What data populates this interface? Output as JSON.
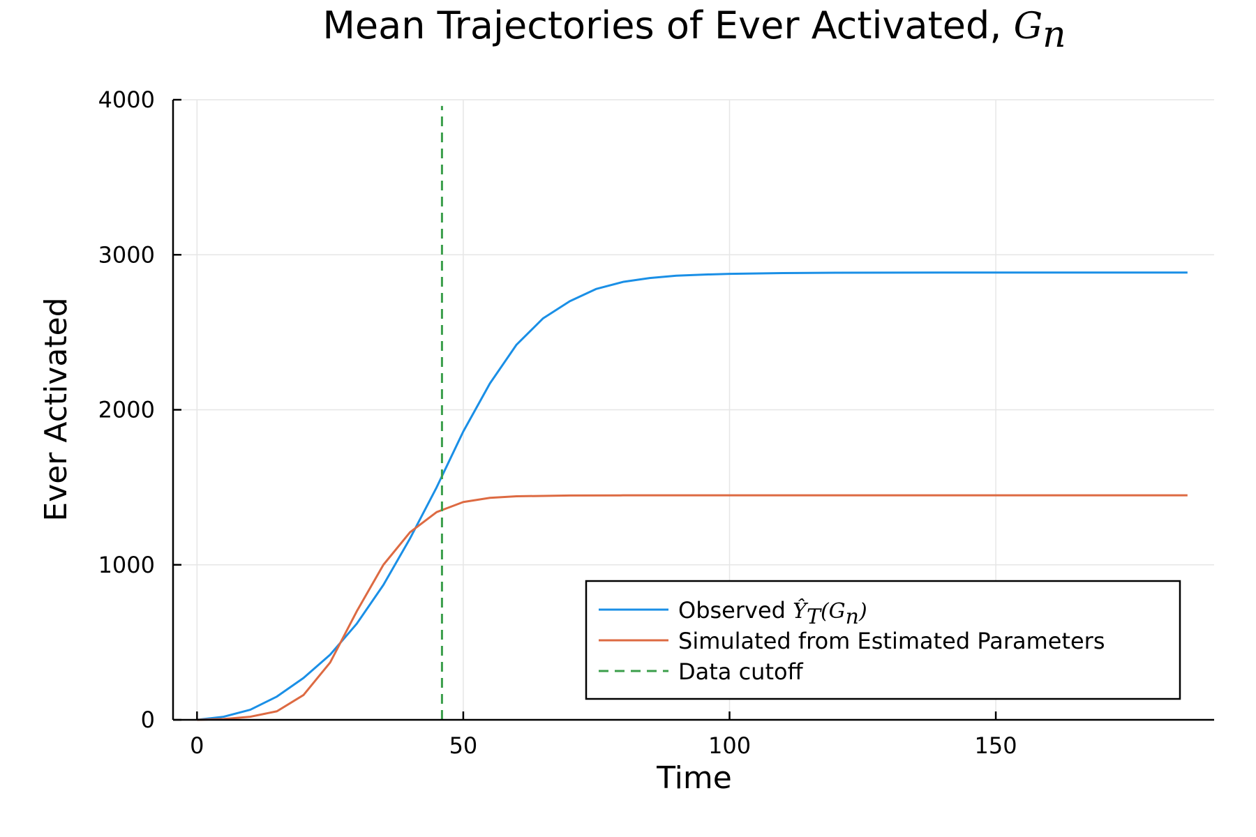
{
  "chart_data": {
    "type": "line",
    "title": "Mean Trajectories of Ever Activated, ",
    "title_math": "G",
    "title_math_sub": "n",
    "xlabel": "Time",
    "ylabel": "Ever Activated",
    "xlim": [
      -4.5,
      191
    ],
    "ylim": [
      0,
      4000
    ],
    "xticks": [
      0,
      50,
      100,
      150
    ],
    "yticks": [
      0,
      1000,
      2000,
      3000,
      4000
    ],
    "grid": true,
    "legend_position": "bottom-right",
    "cutoff": {
      "name": "Data cutoff",
      "x": 46,
      "y_range": [
        0,
        3960
      ],
      "style": "dashed",
      "color": "#3a9e4a"
    },
    "series": [
      {
        "name": "Observed ",
        "name_math": "Ŷ",
        "name_math_sub": "T",
        "name_math_tail": "(G",
        "name_math_tail_sub": "n",
        "name_math_close": ")",
        "color": "#1a8fe6",
        "x": [
          0,
          5,
          10,
          15,
          20,
          25,
          30,
          35,
          40,
          45,
          50,
          55,
          60,
          65,
          70,
          75,
          80,
          85,
          90,
          95,
          100,
          110,
          120,
          140,
          160,
          186
        ],
        "y": [
          0,
          20,
          65,
          150,
          270,
          420,
          620,
          870,
          1170,
          1500,
          1860,
          2170,
          2420,
          2590,
          2700,
          2780,
          2825,
          2850,
          2865,
          2872,
          2877,
          2882,
          2884,
          2885,
          2885,
          2885
        ]
      },
      {
        "name": "Simulated from Estimated Parameters",
        "color": "#dd6a42",
        "x": [
          0,
          5,
          10,
          15,
          20,
          25,
          30,
          35,
          40,
          45,
          50,
          55,
          60,
          70,
          80,
          100,
          140,
          186
        ],
        "y": [
          0,
          5,
          20,
          55,
          160,
          370,
          700,
          1000,
          1210,
          1340,
          1405,
          1432,
          1442,
          1447,
          1448,
          1448,
          1448,
          1448
        ]
      }
    ]
  }
}
